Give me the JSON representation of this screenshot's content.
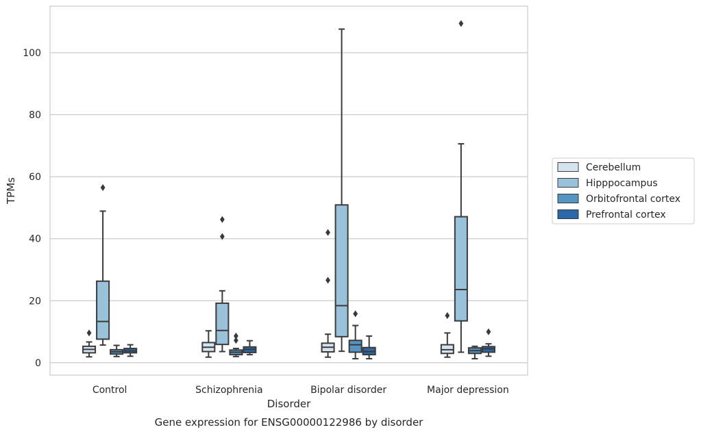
{
  "chart_data": {
    "type": "box",
    "xlabel": "Disorder",
    "ylabel": "TPMs",
    "caption": "Gene expression for ENSG00000122986 by disorder",
    "ylim": [
      -4,
      115
    ],
    "yticks": [
      0,
      20,
      40,
      60,
      80,
      100
    ],
    "grid": "horizontal",
    "legend_position": "right",
    "categories": [
      "Control",
      "Schizophrenia",
      "Bipolar disorder",
      "Major depression"
    ],
    "series": [
      {
        "name": "Cerebellum",
        "color": "#d6e4f0",
        "boxes": [
          {
            "whisker_low": 1.9,
            "q1": 3.2,
            "median": 4.3,
            "q3": 5.3,
            "whisker_high": 6.7,
            "outliers": [
              9.6
            ]
          },
          {
            "whisker_low": 1.8,
            "q1": 3.6,
            "median": 5.0,
            "q3": 6.5,
            "whisker_high": 10.3,
            "outliers": []
          },
          {
            "whisker_low": 1.8,
            "q1": 3.5,
            "median": 5.0,
            "q3": 6.3,
            "whisker_high": 9.2,
            "outliers": [
              26.6,
              42.0
            ]
          },
          {
            "whisker_low": 1.8,
            "q1": 3.0,
            "median": 4.2,
            "q3": 5.8,
            "whisker_high": 9.6,
            "outliers": [
              15.2
            ]
          }
        ]
      },
      {
        "name": "Hipppocampus",
        "color": "#9ac3db",
        "boxes": [
          {
            "whisker_low": 5.7,
            "q1": 7.6,
            "median": 13.3,
            "q3": 26.3,
            "whisker_high": 48.9,
            "outliers": [
              56.5
            ]
          },
          {
            "whisker_low": 3.6,
            "q1": 5.9,
            "median": 10.4,
            "q3": 19.2,
            "whisker_high": 23.2,
            "outliers": [
              40.7,
              46.2
            ]
          },
          {
            "whisker_low": 3.7,
            "q1": 8.4,
            "median": 18.4,
            "q3": 50.9,
            "whisker_high": 107.6,
            "outliers": []
          },
          {
            "whisker_low": 3.4,
            "q1": 13.5,
            "median": 23.6,
            "q3": 47.1,
            "whisker_high": 70.6,
            "outliers": [
              109.4
            ]
          }
        ]
      },
      {
        "name": "Orbitofrontal cortex",
        "color": "#5495c3",
        "boxes": [
          {
            "whisker_low": 2.0,
            "q1": 2.8,
            "median": 3.5,
            "q3": 4.2,
            "whisker_high": 5.6,
            "outliers": []
          },
          {
            "whisker_low": 2.0,
            "q1": 2.6,
            "median": 3.4,
            "q3": 4.1,
            "whisker_high": 4.6,
            "outliers": [
              7.2,
              8.6
            ]
          },
          {
            "whisker_low": 1.3,
            "q1": 3.4,
            "median": 5.8,
            "q3": 7.2,
            "whisker_high": 12.0,
            "outliers": [
              15.8
            ]
          },
          {
            "whisker_low": 1.3,
            "q1": 3.0,
            "median": 3.9,
            "q3": 4.8,
            "whisker_high": 5.3,
            "outliers": []
          }
        ]
      },
      {
        "name": "Prefrontal cortex",
        "color": "#2b68a8",
        "boxes": [
          {
            "whisker_low": 2.1,
            "q1": 3.2,
            "median": 3.8,
            "q3": 4.6,
            "whisker_high": 5.8,
            "outliers": []
          },
          {
            "whisker_low": 2.6,
            "q1": 3.3,
            "median": 4.3,
            "q3": 5.1,
            "whisker_high": 7.1,
            "outliers": []
          },
          {
            "whisker_low": 1.3,
            "q1": 2.6,
            "median": 3.6,
            "q3": 4.9,
            "whisker_high": 8.6,
            "outliers": []
          },
          {
            "whisker_low": 2.1,
            "q1": 3.4,
            "median": 4.5,
            "q3": 5.2,
            "whisker_high": 6.1,
            "outliers": [
              10.0
            ]
          }
        ]
      }
    ]
  }
}
